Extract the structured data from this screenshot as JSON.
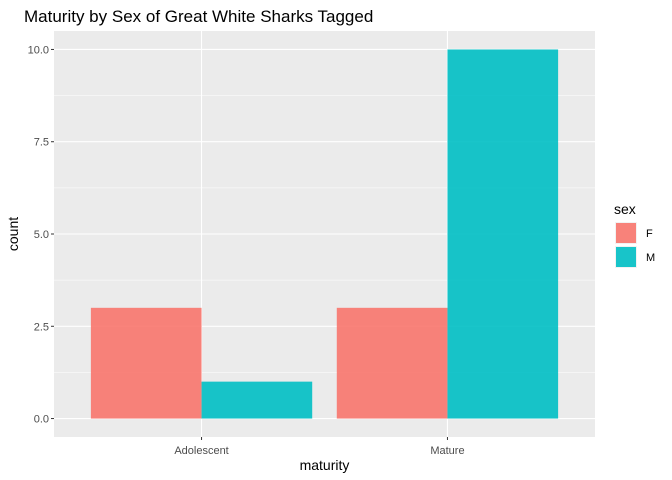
{
  "chart_data": {
    "type": "bar",
    "title": "Maturity by Sex of Great White Sharks Tagged",
    "xlabel": "maturity",
    "ylabel": "count",
    "categories": [
      "Adolescent",
      "Mature"
    ],
    "series": [
      {
        "name": "F",
        "values": [
          3,
          3
        ],
        "color": "#F8766D"
      },
      {
        "name": "M",
        "values": [
          1,
          10
        ],
        "color": "#00BFC4"
      }
    ],
    "ylim": [
      -0.5,
      10.5
    ],
    "yticks": [
      "0.0",
      "2.5",
      "5.0",
      "7.5",
      "10.0"
    ],
    "ytick_values": [
      0,
      2.5,
      5,
      7.5,
      10
    ],
    "grid": true,
    "legend": {
      "title": "sex",
      "position": "right"
    }
  }
}
